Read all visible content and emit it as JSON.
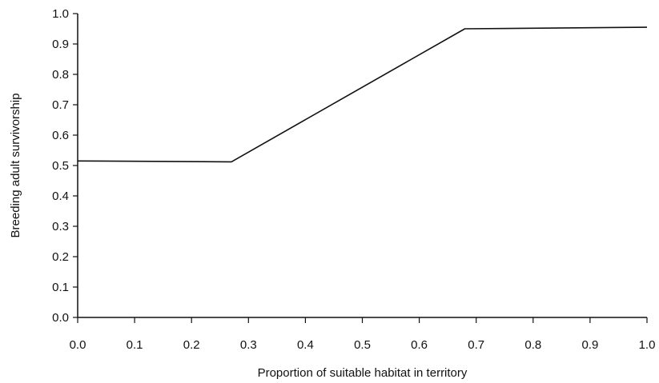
{
  "chart_data": {
    "type": "line",
    "title": "",
    "xlabel": "Proportion of suitable habitat in territory",
    "ylabel": "Breeding adult survivorship",
    "xlim": [
      0.0,
      1.0
    ],
    "ylim": [
      0.0,
      1.0
    ],
    "xticks": [
      "0.0",
      "0.1",
      "0.2",
      "0.3",
      "0.4",
      "0.5",
      "0.6",
      "0.7",
      "0.8",
      "0.9",
      "1.0"
    ],
    "yticks": [
      "0.0",
      "0.1",
      "0.2",
      "0.3",
      "0.4",
      "0.5",
      "0.6",
      "0.7",
      "0.8",
      "0.9",
      "1.0"
    ],
    "grid": false,
    "legend": "none",
    "series": [
      {
        "x": [
          0.0,
          0.27,
          0.68,
          1.0
        ],
        "y": [
          0.515,
          0.512,
          0.95,
          0.955
        ]
      }
    ]
  }
}
